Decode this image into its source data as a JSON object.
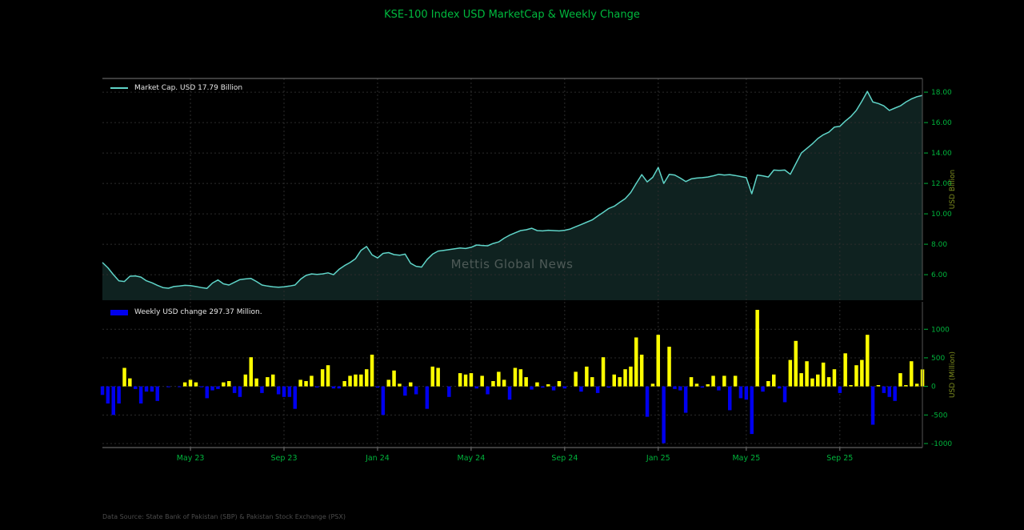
{
  "title": "KSE-100 Index USD MarketCap & Weekly Change",
  "watermark": "Mettis Global News",
  "footer": "Data Source: State Bank of Pakistan (SBP) & Pakistan Stock Exchange (PSX)",
  "colors": {
    "background": "#000000",
    "title_green": "#00b93e",
    "tick_green": "#00b43c",
    "axis_label_olive": "#7f8f1f",
    "line_teal": "#5fd4c8",
    "fill_teal": "rgba(95,212,200,0.16)",
    "bar_positive": "#ffff00",
    "bar_negative": "#0000ee",
    "grid": "#2d2d2d",
    "spine": "#7a7a7a",
    "legend_text": "#e8e8e8",
    "watermark_gray": "#4e5a57",
    "footer_gray": "#4c4c4c"
  },
  "chart_data": [
    {
      "type": "area",
      "panel": "top",
      "legend": "Market Cap. USD 17.79 Billion",
      "ylabel": "USD Billion",
      "yticks": [
        6,
        8,
        10,
        12,
        14,
        16,
        18
      ],
      "yticklabels": [
        "6.00",
        "8.00",
        "10.00",
        "12.00",
        "14.00",
        "16.00",
        "18.00"
      ],
      "ylim": [
        4.32,
        18.9
      ],
      "grid": true,
      "legend_position": "top-left",
      "last_value": 17.79,
      "values": [
        6.8,
        6.45,
        6.0,
        5.6,
        5.55,
        5.9,
        5.92,
        5.84,
        5.6,
        5.47,
        5.3,
        5.15,
        5.11,
        5.22,
        5.25,
        5.3,
        5.28,
        5.22,
        5.15,
        5.1,
        5.45,
        5.65,
        5.4,
        5.32,
        5.5,
        5.68,
        5.72,
        5.75,
        5.55,
        5.32,
        5.25,
        5.2,
        5.18,
        5.2,
        5.25,
        5.32,
        5.7,
        5.95,
        6.05,
        6.02,
        6.05,
        6.12,
        6.0,
        6.35,
        6.6,
        6.8,
        7.05,
        7.6,
        7.85,
        7.3,
        7.1,
        7.4,
        7.45,
        7.32,
        7.28,
        7.35,
        6.75,
        6.55,
        6.5,
        7.0,
        7.35,
        7.55,
        7.6,
        7.65,
        7.7,
        7.75,
        7.72,
        7.8,
        7.95,
        7.92,
        7.9,
        8.05,
        8.15,
        8.4,
        8.6,
        8.75,
        8.9,
        8.95,
        9.05,
        8.9,
        8.88,
        8.92,
        8.9,
        8.88,
        8.92,
        9.0,
        9.15,
        9.3,
        9.45,
        9.6,
        9.85,
        10.1,
        10.35,
        10.5,
        10.75,
        11.0,
        11.4,
        12.0,
        12.58,
        12.1,
        12.4,
        13.05,
        12.0,
        12.6,
        12.55,
        12.35,
        12.12,
        12.3,
        12.35,
        12.38,
        12.42,
        12.5,
        12.6,
        12.55,
        12.58,
        12.52,
        12.45,
        12.38,
        11.32,
        12.55,
        12.5,
        12.42,
        12.88,
        12.85,
        12.88,
        12.6,
        13.3,
        14.0,
        14.3,
        14.6,
        14.95,
        15.2,
        15.37,
        15.7,
        15.75,
        16.1,
        16.4,
        16.8,
        17.4,
        18.05,
        17.35,
        17.25,
        17.1,
        16.8,
        16.95,
        17.1,
        17.35,
        17.55,
        17.7,
        17.79
      ]
    },
    {
      "type": "bar",
      "panel": "bottom",
      "legend": "Weekly USD change 297.37 Million.",
      "ylabel": "USD (Million)",
      "yticks": [
        -1000,
        -500,
        0,
        500,
        1000
      ],
      "yticklabels": [
        "-1000",
        "-500",
        "0",
        "500",
        "1000"
      ],
      "ylim": [
        -1070,
        1480
      ],
      "grid": true,
      "legend_position": "top-left",
      "last_value": 297.37,
      "values": [
        -150,
        -300,
        -500,
        -300,
        324,
        140,
        -46,
        -300,
        -93,
        -93,
        -255,
        0,
        -15,
        0,
        -10,
        70,
        115,
        70,
        -15,
        -208,
        -70,
        -46,
        70,
        93,
        -116,
        -185,
        208,
        510,
        139,
        -116,
        162,
        208,
        -139,
        -185,
        -185,
        -394,
        116,
        93,
        185,
        -20,
        300,
        370,
        -37,
        -37,
        93,
        185,
        208,
        208,
        300,
        555,
        -23,
        -500,
        116,
        278,
        46,
        -162,
        70,
        -139,
        0,
        -394,
        347,
        324,
        0,
        -185,
        0,
        232,
        208,
        232,
        -37,
        185,
        -139,
        93,
        255,
        116,
        -232,
        324,
        300,
        162,
        -56,
        70,
        -23,
        37,
        -70,
        93,
        -37,
        0,
        255,
        -93,
        347,
        162,
        -116,
        510,
        -23,
        208,
        162,
        300,
        347,
        856,
        555,
        -532,
        46,
        903,
        -995,
        694,
        -46,
        -70,
        -463,
        162,
        46,
        -23,
        37,
        185,
        -70,
        185,
        -417,
        185,
        -208,
        -232,
        -833,
        1340,
        -93,
        93,
        208,
        -37,
        -278,
        463,
        796,
        232,
        440,
        139,
        208,
        417,
        162,
        300,
        -116,
        579,
        23,
        370,
        463,
        903,
        -671,
        23,
        -116,
        -185,
        -255,
        232,
        23,
        440,
        46,
        297
      ]
    }
  ],
  "x_axis": {
    "ticklabels": [
      "May 23",
      "Sep 23",
      "Jan 24",
      "May 24",
      "Sep 24",
      "Jan 25",
      "May 25",
      "Sep 25"
    ],
    "tick_indices": [
      16,
      33,
      50,
      67,
      84,
      101,
      117,
      134
    ]
  }
}
